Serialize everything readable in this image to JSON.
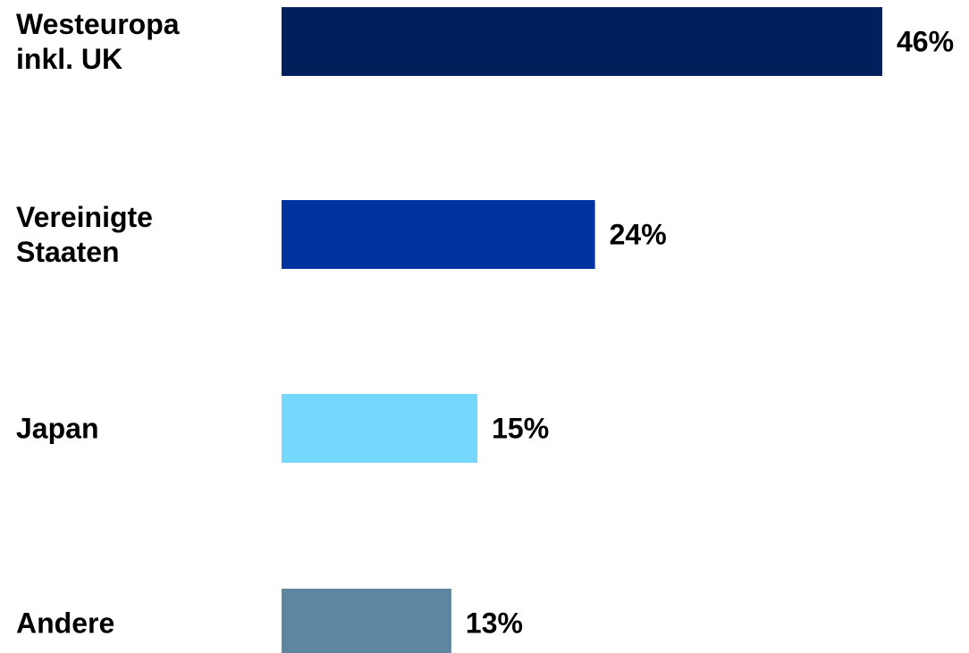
{
  "chart_data": {
    "type": "bar",
    "orientation": "horizontal",
    "categories": [
      [
        "Westeuropa",
        "inkl. UK"
      ],
      [
        "Vereinigte",
        "Staaten"
      ],
      [
        "Japan"
      ],
      [
        "Andere"
      ]
    ],
    "values": [
      46,
      24,
      15,
      13
    ],
    "value_labels": [
      "46%",
      "24%",
      "15%",
      "13%"
    ],
    "colors": [
      "#00205b",
      "#0033a0",
      "#75d7fc",
      "#5e86a0"
    ],
    "xlim": [
      0,
      46
    ],
    "grid": false,
    "legend": "none"
  }
}
